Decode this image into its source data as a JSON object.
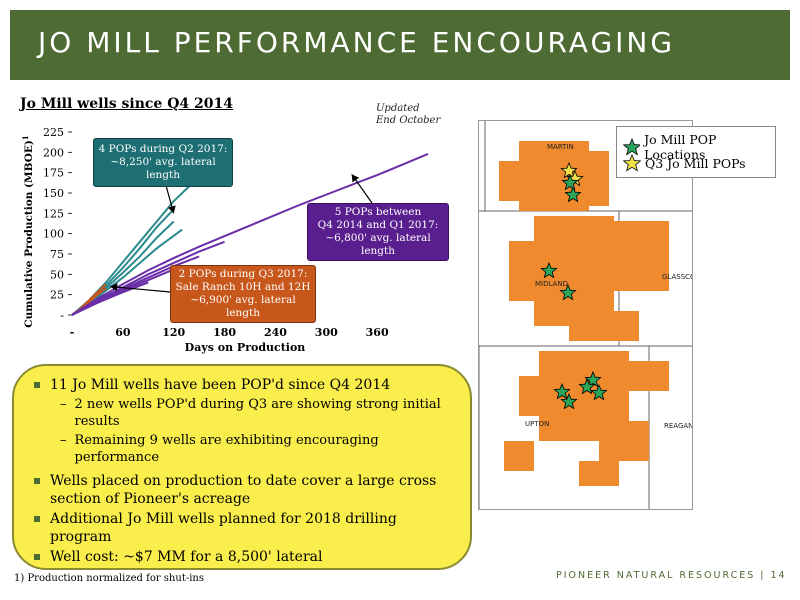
{
  "header": {
    "title": "JO MILL PERFORMANCE ENCOURAGING"
  },
  "chart_title": "Jo Mill wells since Q4 2014",
  "updated_note": [
    "Updated",
    "End October"
  ],
  "chart_data": {
    "type": "line",
    "xlabel": "Days on Production",
    "ylabel": "Cumulative Production (MBOE)",
    "ylabel_superscript": "1",
    "xlim": [
      0,
      420
    ],
    "ylim": [
      0,
      225
    ],
    "xticks": [
      0,
      60,
      120,
      180,
      240,
      300,
      360
    ],
    "xtick_labels": [
      "-",
      "60",
      "120",
      "180",
      "240",
      "300",
      "360"
    ],
    "yticks": [
      0,
      25,
      50,
      75,
      100,
      125,
      150,
      175,
      200,
      225
    ],
    "ytick_labels": [
      "-",
      "25",
      "50",
      "75",
      "100",
      "125",
      "150",
      "175",
      "200",
      "225"
    ],
    "series": [
      {
        "group": "Q2 2017",
        "color": "#2a8a8e",
        "x": [
          0,
          20,
          40,
          60,
          80,
          100,
          120,
          140
        ],
        "y": [
          0,
          18,
          40,
          65,
          90,
          115,
          140,
          160
        ]
      },
      {
        "group": "Q2 2017",
        "color": "#2a8a8e",
        "x": [
          0,
          20,
          40,
          60,
          80,
          100,
          120
        ],
        "y": [
          0,
          16,
          36,
          58,
          82,
          108,
          130
        ]
      },
      {
        "group": "Q2 2017",
        "color": "#2a8a8e",
        "x": [
          0,
          20,
          40,
          60,
          80,
          100,
          120
        ],
        "y": [
          0,
          15,
          33,
          52,
          72,
          95,
          115
        ]
      },
      {
        "group": "Q2 2017",
        "color": "#2a8a8e",
        "x": [
          0,
          20,
          40,
          60,
          80,
          100,
          130
        ],
        "y": [
          0,
          14,
          30,
          46,
          64,
          82,
          105
        ]
      },
      {
        "group": "Q3 2017",
        "color": "#c8571c",
        "x": [
          0,
          10,
          20,
          30,
          40
        ],
        "y": [
          0,
          8,
          18,
          28,
          38
        ]
      },
      {
        "group": "Q3 2017",
        "color": "#c8571c",
        "x": [
          0,
          10,
          20,
          30,
          40
        ],
        "y": [
          0,
          7,
          16,
          25,
          33
        ]
      },
      {
        "group": "Q4 2014 - Q1 2017",
        "color": "#6a2fa8",
        "x": [
          0,
          30,
          60,
          90,
          120,
          150,
          180,
          210,
          240,
          270,
          300,
          330,
          360,
          390,
          420
        ],
        "y": [
          0,
          20,
          38,
          55,
          70,
          84,
          97,
          110,
          123,
          136,
          148,
          160,
          172,
          185,
          198
        ]
      },
      {
        "group": "Q4 2014 - Q1 2017",
        "color": "#6a2fa8",
        "x": [
          0,
          30,
          60,
          90,
          120,
          150,
          180
        ],
        "y": [
          0,
          18,
          34,
          50,
          64,
          78,
          90
        ]
      },
      {
        "group": "Q4 2014 - Q1 2017",
        "color": "#6a2fa8",
        "x": [
          0,
          30,
          60,
          90,
          120,
          150
        ],
        "y": [
          0,
          17,
          32,
          46,
          60,
          72
        ]
      },
      {
        "group": "Q4 2014 - Q1 2017",
        "color": "#6a2fa8",
        "x": [
          0,
          30,
          60,
          90,
          120
        ],
        "y": [
          0,
          16,
          30,
          43,
          56
        ]
      },
      {
        "group": "Q4 2014 - Q1 2017",
        "color": "#6a2fa8",
        "x": [
          0,
          30,
          60,
          90
        ],
        "y": [
          0,
          15,
          28,
          40
        ]
      }
    ],
    "annotations": [
      {
        "id": "teal",
        "lines": [
          "4 POPs during Q2 2017:",
          "~8,250' avg. lateral length"
        ],
        "arrow_to": [
          120,
          125
        ]
      },
      {
        "id": "purple",
        "lines": [
          "5 POPs between",
          "Q4 2014 and Q1 2017:",
          "~6,800' avg. lateral length"
        ],
        "arrow_to": [
          330,
          173
        ]
      },
      {
        "id": "orange",
        "lines": [
          "2 POPs during Q3 2017:",
          "Sale Ranch 10H and 12H",
          "~6,900' avg. lateral length"
        ],
        "arrow_to": [
          45,
          35
        ]
      }
    ]
  },
  "map": {
    "legend": [
      {
        "label": "Jo Mill POP Locations",
        "color": "#2aa55a"
      },
      {
        "label": "Q3 Jo Mill POPs",
        "color": "#f0e04a"
      }
    ],
    "county_labels": [
      "MARTIN",
      "MIDLAND",
      "GLASSCOCK",
      "UPTON",
      "REAGAN"
    ],
    "acreage_color": "#f08a2e"
  },
  "bullets": [
    {
      "level": 1,
      "text": "11 Jo Mill wells have been POP'd since Q4 2014"
    },
    {
      "level": 2,
      "text": "2 new wells POP'd during Q3 are showing strong initial results"
    },
    {
      "level": 2,
      "text": "Remaining 9 wells are exhibiting encouraging performance"
    },
    {
      "level": 1,
      "text": "Wells placed on production to date cover a large cross section of Pioneer's acreage"
    },
    {
      "level": 1,
      "text": "Additional Jo Mill wells planned for 2018 drilling program"
    },
    {
      "level": 1,
      "text": "Well cost: ~$7 MM for a 8,500' lateral"
    }
  ],
  "footnote": "1)  Production normalized for shut-ins",
  "footer": {
    "company": "PIONEER NATURAL RESOURCES",
    "page": "14"
  }
}
